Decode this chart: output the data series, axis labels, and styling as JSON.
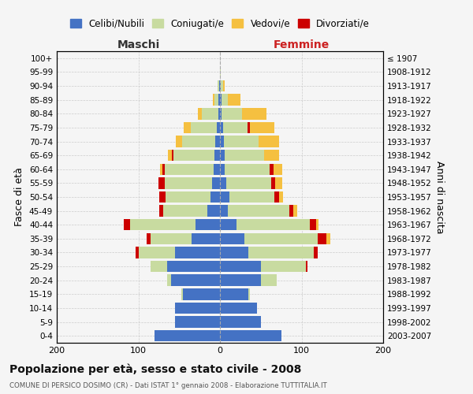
{
  "age_groups": [
    "0-4",
    "5-9",
    "10-14",
    "15-19",
    "20-24",
    "25-29",
    "30-34",
    "35-39",
    "40-44",
    "45-49",
    "50-54",
    "55-59",
    "60-64",
    "65-69",
    "70-74",
    "75-79",
    "80-84",
    "85-89",
    "90-94",
    "95-99",
    "100+"
  ],
  "birth_years": [
    "2003-2007",
    "1998-2002",
    "1993-1997",
    "1988-1992",
    "1983-1987",
    "1978-1982",
    "1973-1977",
    "1968-1972",
    "1963-1967",
    "1958-1962",
    "1953-1957",
    "1948-1952",
    "1943-1947",
    "1938-1942",
    "1933-1937",
    "1928-1932",
    "1923-1927",
    "1918-1922",
    "1913-1917",
    "1908-1912",
    "≤ 1907"
  ],
  "colors": {
    "celibe": "#4472c4",
    "coniugato": "#c8dba0",
    "vedovo": "#f5c040",
    "divorziato": "#cc0000"
  },
  "maschi": {
    "celibe": [
      80,
      55,
      55,
      45,
      60,
      65,
      55,
      35,
      30,
      15,
      12,
      10,
      8,
      7,
      6,
      4,
      2,
      2,
      1,
      0,
      0
    ],
    "coniugato": [
      0,
      0,
      0,
      2,
      5,
      20,
      45,
      50,
      80,
      55,
      55,
      58,
      60,
      50,
      40,
      32,
      20,
      5,
      2,
      0,
      0
    ],
    "vedovo": [
      0,
      0,
      0,
      0,
      0,
      0,
      0,
      0,
      0,
      0,
      0,
      0,
      2,
      5,
      8,
      8,
      5,
      2,
      0,
      0,
      0
    ],
    "divorziato": [
      0,
      0,
      0,
      0,
      0,
      0,
      3,
      5,
      8,
      4,
      7,
      7,
      3,
      2,
      0,
      0,
      0,
      0,
      0,
      0,
      0
    ]
  },
  "femmine": {
    "nubile": [
      75,
      50,
      45,
      35,
      50,
      50,
      35,
      30,
      20,
      10,
      12,
      8,
      6,
      6,
      5,
      4,
      2,
      2,
      1,
      0,
      0
    ],
    "coniugata": [
      0,
      0,
      0,
      2,
      20,
      55,
      80,
      90,
      90,
      75,
      55,
      55,
      55,
      48,
      42,
      30,
      25,
      8,
      3,
      1,
      0
    ],
    "vedova": [
      0,
      0,
      0,
      0,
      0,
      0,
      0,
      5,
      3,
      5,
      5,
      8,
      10,
      18,
      25,
      30,
      30,
      15,
      2,
      0,
      0
    ],
    "divorziata": [
      0,
      0,
      0,
      0,
      0,
      2,
      5,
      10,
      8,
      5,
      5,
      5,
      5,
      0,
      0,
      3,
      0,
      0,
      0,
      0,
      0
    ]
  },
  "xlim": 200,
  "xticks": [
    -200,
    -100,
    0,
    100,
    200
  ],
  "xticklabels": [
    "200",
    "100",
    "0",
    "100",
    "200"
  ],
  "title": "Popolazione per età, sesso e stato civile - 2008",
  "subtitle": "COMUNE DI PERSICO DOSIMO (CR) - Dati ISTAT 1° gennaio 2008 - Elaborazione TUTTITALIA.IT",
  "ylabel_left": "Fasce di età",
  "ylabel_right": "Anni di nascita",
  "maschi_label": "Maschi",
  "femmine_label": "Femmine",
  "legend_labels": [
    "Celibi/Nubili",
    "Coniugati/e",
    "Vedovi/e",
    "Divorziati/e"
  ],
  "bg_color": "#f5f5f5",
  "grid_color": "#cccccc",
  "maschi_label_color": "#333333",
  "femmine_label_color": "#cc2222"
}
